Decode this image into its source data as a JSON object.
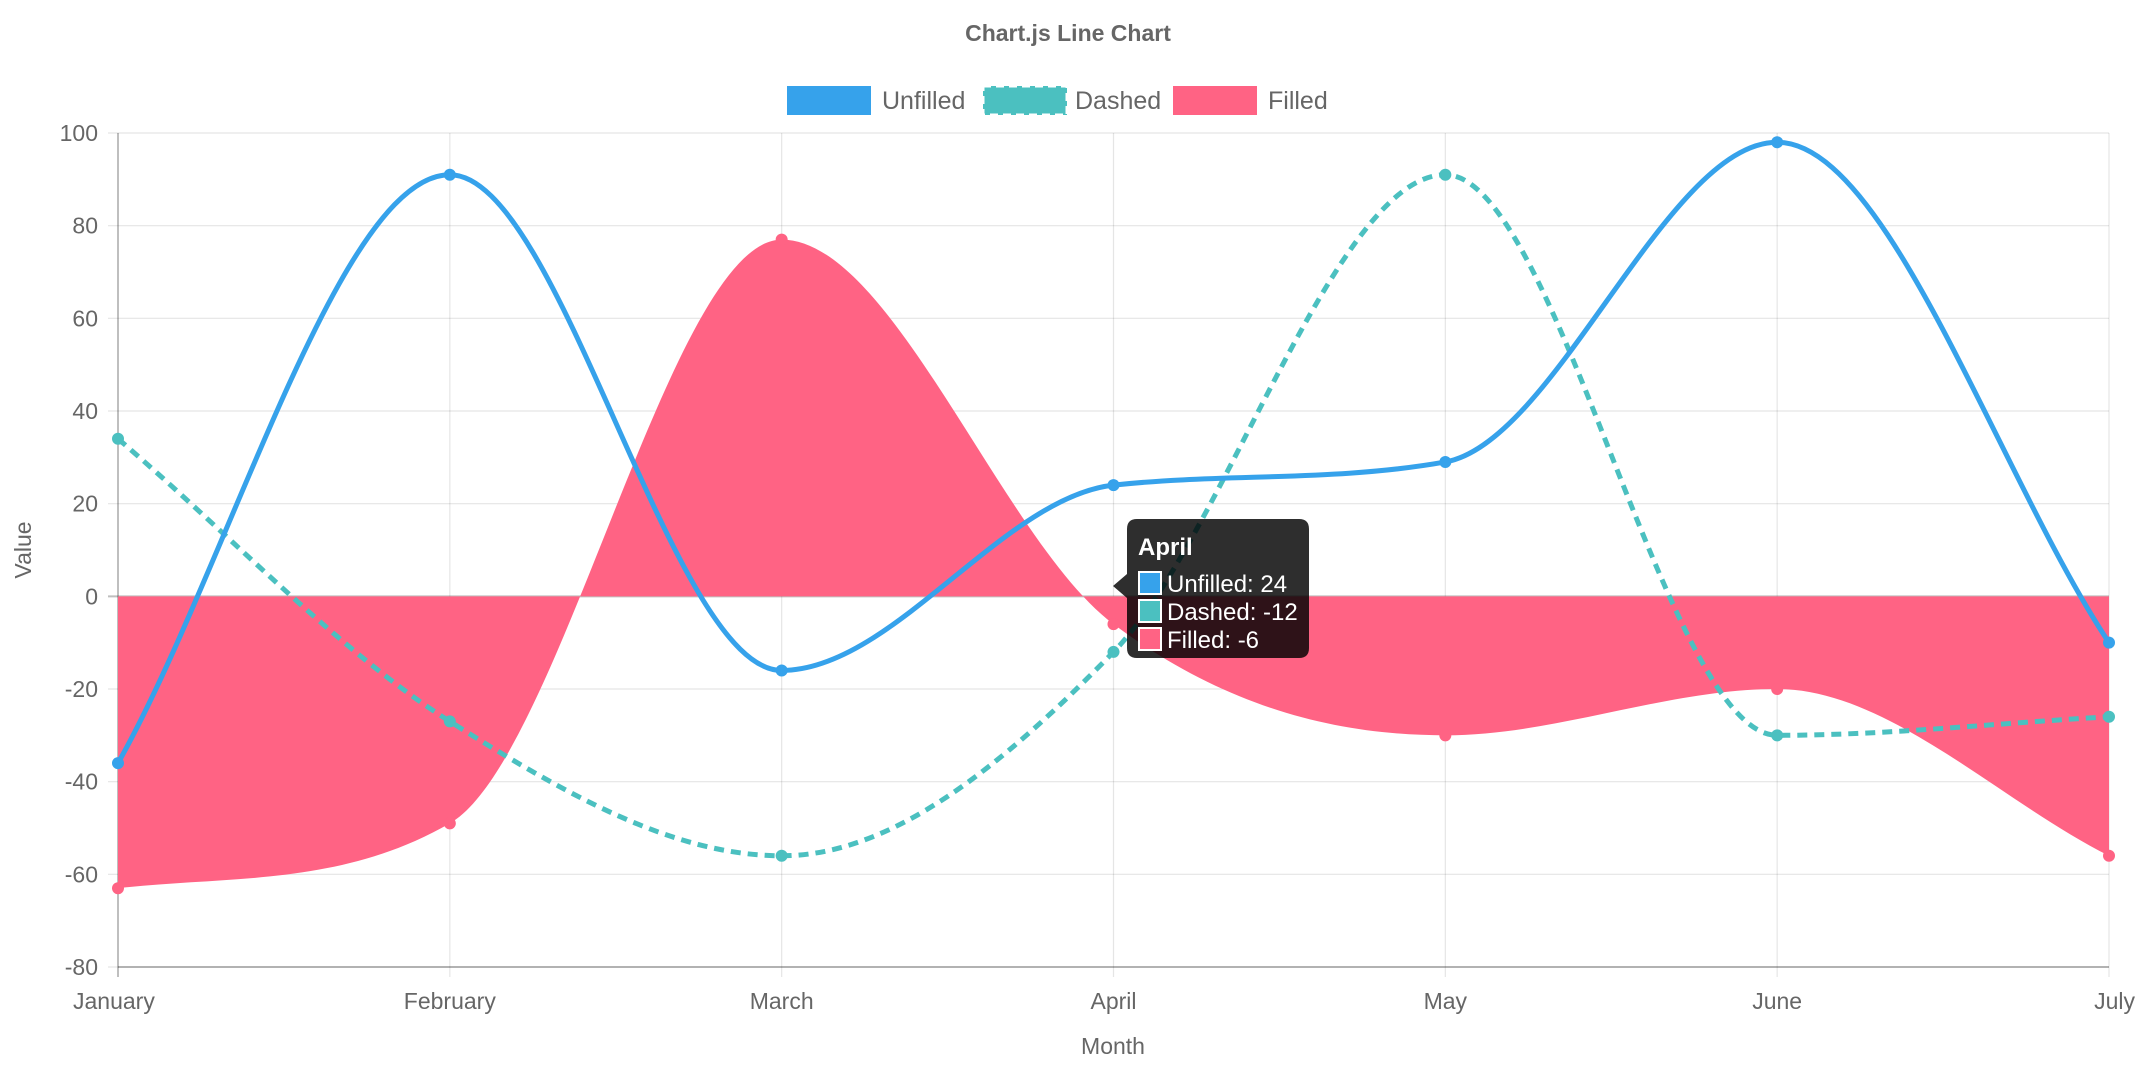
{
  "chart_data": {
    "type": "line",
    "title": "Chart.js Line Chart",
    "xlabel": "Month",
    "ylabel": "Value",
    "ylim": [
      -80,
      100
    ],
    "y_ticks": [
      100,
      80,
      60,
      40,
      20,
      0,
      -20,
      -40,
      -60,
      -80
    ],
    "categories": [
      "January",
      "February",
      "March",
      "April",
      "May",
      "June",
      "July"
    ],
    "grid": true,
    "legend_position": "top",
    "series": [
      {
        "name": "Unfilled",
        "values": [
          -36,
          91,
          -16,
          24,
          29,
          98,
          -10
        ],
        "color": "#36a2eb",
        "style": "solid",
        "fill": false
      },
      {
        "name": "Dashed",
        "values": [
          34,
          -27,
          -56,
          -12,
          91,
          -30,
          -26
        ],
        "color": "#4bc0c0",
        "style": "dashed",
        "fill": false
      },
      {
        "name": "Filled",
        "values": [
          -63,
          -49,
          77,
          -6,
          -30,
          -20,
          -56
        ],
        "color": "#ff6384",
        "style": "solid",
        "fill": true
      }
    ],
    "tooltip": {
      "title": "April",
      "lines": [
        "Unfilled: 24",
        "Dashed: -12",
        "Filled: -6"
      ]
    }
  }
}
